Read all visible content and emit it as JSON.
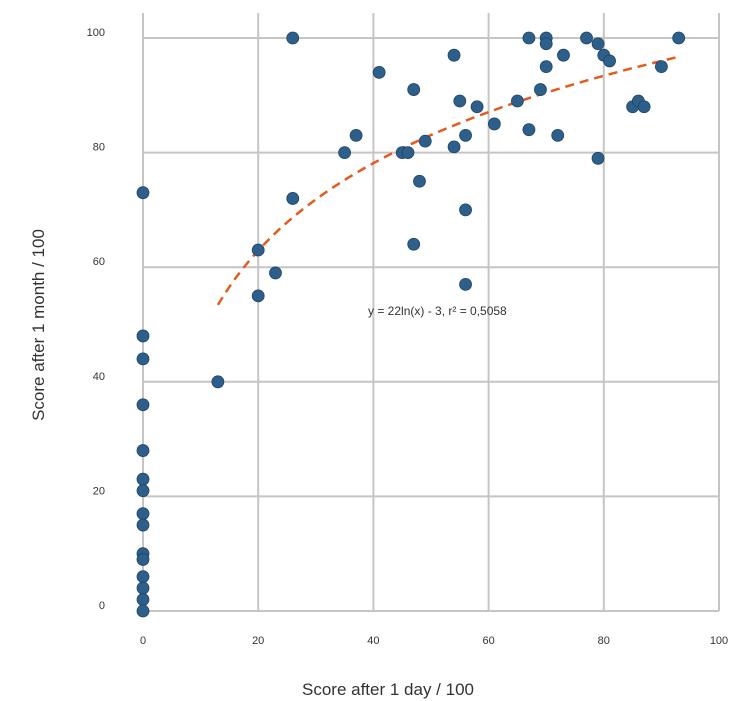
{
  "chart_data": {
    "type": "scatter",
    "xlabel": "Score after 1 day / 100",
    "ylabel": "Score after 1 month / 100",
    "xlim": [
      0,
      100
    ],
    "ylim": [
      0,
      100
    ],
    "x_ticks": [
      "0",
      "20",
      "40",
      "60",
      "80",
      "100"
    ],
    "y_ticks": [
      "0",
      "20",
      "40",
      "60",
      "80",
      "100"
    ],
    "grid": true,
    "point_color": "#2e5f8a",
    "trend_color": "#e35b1e",
    "trendline": {
      "type": "logarithmic",
      "a": 22,
      "b": -3,
      "x_range": [
        13,
        93
      ],
      "equation": "y = 22ln(x) - 3, r² = 0,5058"
    },
    "points": [
      [
        0,
        73
      ],
      [
        0,
        48
      ],
      [
        0,
        44
      ],
      [
        0,
        36
      ],
      [
        0,
        28
      ],
      [
        0,
        23
      ],
      [
        0,
        21
      ],
      [
        0,
        17
      ],
      [
        0,
        15
      ],
      [
        0,
        10
      ],
      [
        0,
        9
      ],
      [
        0,
        6
      ],
      [
        0,
        4
      ],
      [
        0,
        2
      ],
      [
        0,
        0
      ],
      [
        13,
        40
      ],
      [
        20,
        63
      ],
      [
        20,
        55
      ],
      [
        23,
        59
      ],
      [
        26,
        100
      ],
      [
        26,
        72
      ],
      [
        35,
        80
      ],
      [
        37,
        83
      ],
      [
        41,
        94
      ],
      [
        45,
        80
      ],
      [
        46,
        80
      ],
      [
        47,
        91
      ],
      [
        47,
        64
      ],
      [
        48,
        75
      ],
      [
        49,
        82
      ],
      [
        54,
        97
      ],
      [
        54,
        81
      ],
      [
        55,
        89
      ],
      [
        56,
        83
      ],
      [
        56,
        70
      ],
      [
        56,
        57
      ],
      [
        58,
        88
      ],
      [
        61,
        85
      ],
      [
        65,
        89
      ],
      [
        67,
        100
      ],
      [
        67,
        84
      ],
      [
        69,
        91
      ],
      [
        70,
        100
      ],
      [
        70,
        99
      ],
      [
        70,
        95
      ],
      [
        72,
        83
      ],
      [
        73,
        97
      ],
      [
        77,
        100
      ],
      [
        79,
        99
      ],
      [
        79,
        79
      ],
      [
        80,
        97
      ],
      [
        81,
        96
      ],
      [
        85,
        88
      ],
      [
        86,
        89
      ],
      [
        87,
        88
      ],
      [
        90,
        95
      ],
      [
        93,
        100
      ]
    ]
  }
}
